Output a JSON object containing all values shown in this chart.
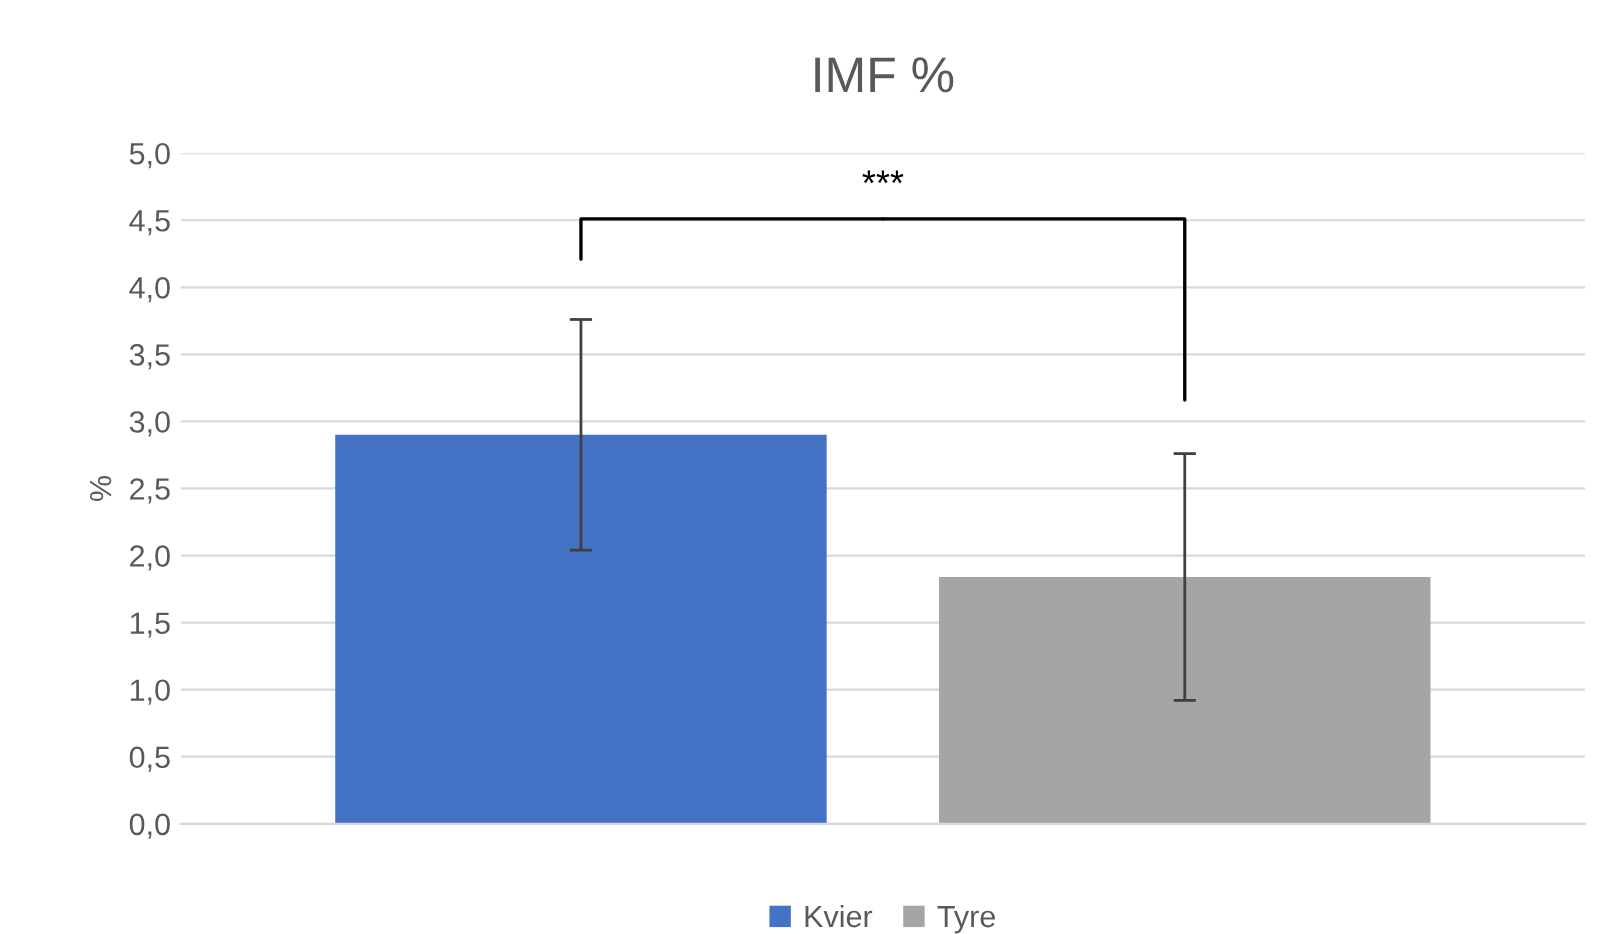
{
  "chart_data": {
    "type": "bar",
    "title": "IMF %",
    "ylabel": "%",
    "categories": [
      null
    ],
    "series": [
      {
        "name": "Kvier",
        "color": "#4472c4",
        "values": [
          2.9
        ],
        "errors": [
          0.86
        ]
      },
      {
        "name": "Tyre",
        "color": "#a5a5a5",
        "values": [
          1.84
        ],
        "errors": [
          0.92
        ]
      }
    ],
    "ylim": [
      0,
      5
    ],
    "yticks": [
      {
        "value": 0,
        "label": "0,0"
      },
      {
        "value": 0.5,
        "label": "0,5"
      },
      {
        "value": 1,
        "label": "1,0"
      },
      {
        "value": 1.5,
        "label": "1,5"
      },
      {
        "value": 2,
        "label": "2,0"
      },
      {
        "value": 2.5,
        "label": "2,5"
      },
      {
        "value": 3,
        "label": "3,0"
      },
      {
        "value": 3.5,
        "label": "3,5"
      },
      {
        "value": 4,
        "label": "4,0"
      },
      {
        "value": 4.5,
        "label": "4,5"
      },
      {
        "value": 5,
        "label": "5,0"
      }
    ],
    "grid": "y",
    "legend": "bottom",
    "annotations": [
      "***"
    ]
  }
}
